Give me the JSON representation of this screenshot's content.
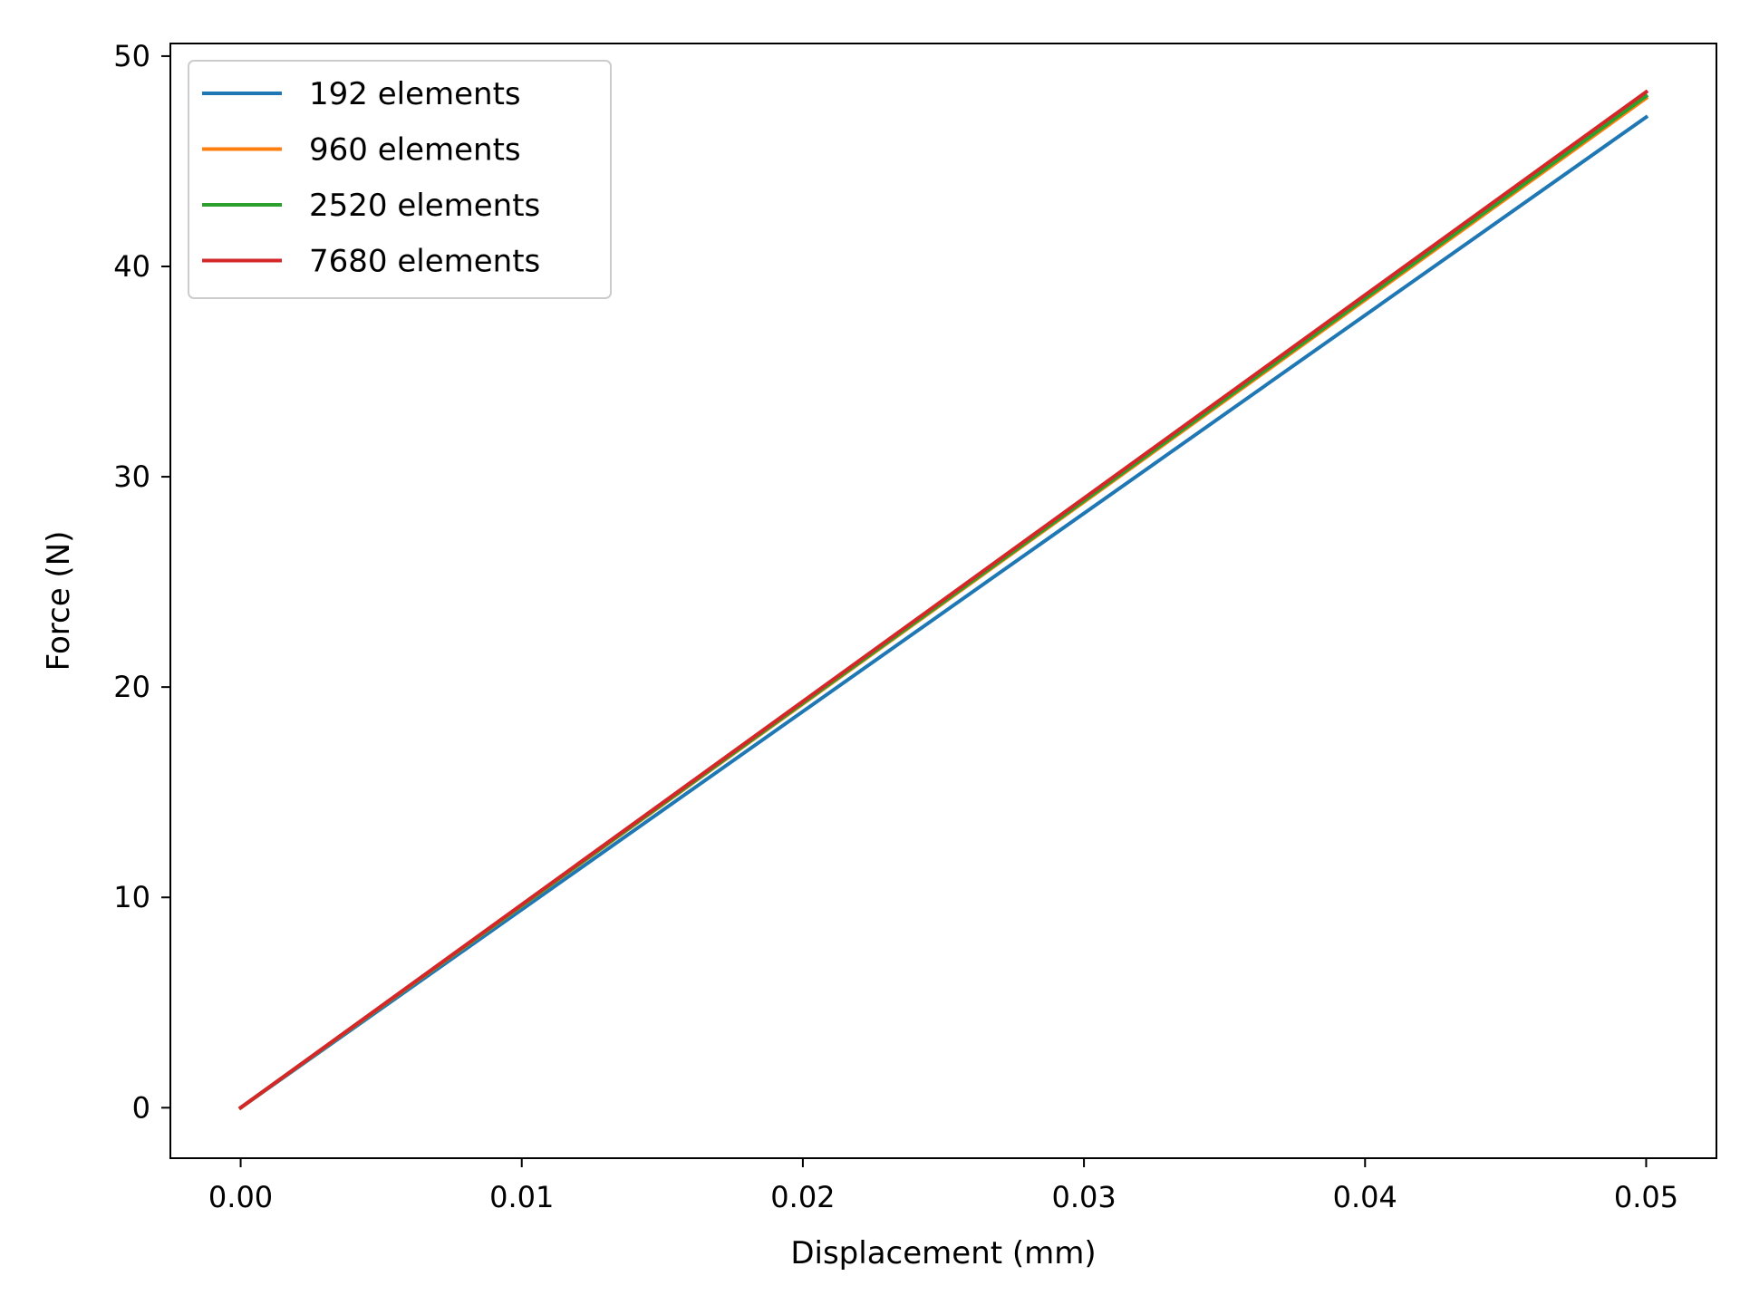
{
  "chart_data": {
    "type": "line",
    "title": "",
    "xlabel": "Displacement (mm)",
    "ylabel": "Force (N)",
    "xlim": [
      -0.0025,
      0.0525
    ],
    "ylim": [
      -2.4,
      50.6
    ],
    "xticks": [
      0.0,
      0.01,
      0.02,
      0.03,
      0.04,
      0.05
    ],
    "xtick_labels": [
      "0.00",
      "0.01",
      "0.02",
      "0.03",
      "0.04",
      "0.05"
    ],
    "yticks": [
      0,
      10,
      20,
      30,
      40,
      50
    ],
    "ytick_labels": [
      "0",
      "10",
      "20",
      "30",
      "40",
      "50"
    ],
    "grid": false,
    "legend_position": "top-left",
    "series": [
      {
        "name": "192 elements",
        "color": "#1f77b4",
        "x": [
          0.0,
          0.05
        ],
        "y": [
          0.0,
          47.1
        ]
      },
      {
        "name": "960 elements",
        "color": "#ff7f0e",
        "x": [
          0.0,
          0.05
        ],
        "y": [
          0.0,
          48.0
        ]
      },
      {
        "name": "2520 elements",
        "color": "#2ca02c",
        "x": [
          0.0,
          0.05
        ],
        "y": [
          0.0,
          48.1
        ]
      },
      {
        "name": "7680 elements",
        "color": "#d62728",
        "x": [
          0.0,
          0.05
        ],
        "y": [
          0.0,
          48.3
        ]
      }
    ]
  }
}
